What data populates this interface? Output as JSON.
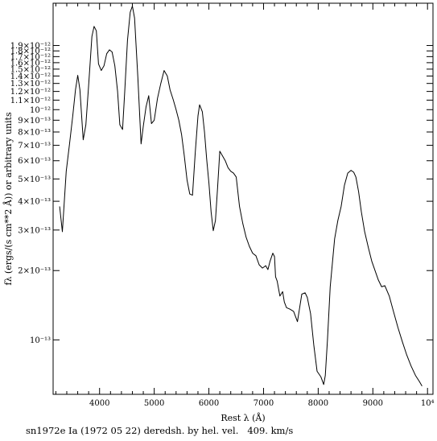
{
  "chart_data": {
    "type": "line",
    "title": "",
    "xlabel": "Rest λ (Å)",
    "ylabel": "fλ (ergs/(s cm**2 Å)) or arbitrary units",
    "caption": "sn1972e Ia (1972 05 22) deredsh. by hel. vel.   409. km/s",
    "xlim": [
      3150,
      10100
    ],
    "xscale": "linear",
    "yscale": "log",
    "ylim": [
      5.8e-14,
      2.9e-12
    ],
    "x_ticks": [
      {
        "value": 4000,
        "label": "4000"
      },
      {
        "value": 5000,
        "label": "5000"
      },
      {
        "value": 6000,
        "label": "6000"
      },
      {
        "value": 7000,
        "label": "7000"
      },
      {
        "value": 8000,
        "label": "8000"
      },
      {
        "value": 9000,
        "label": "9000"
      },
      {
        "value": 10000,
        "label": "10⁴"
      }
    ],
    "y_ticks": [
      {
        "value": 1e-13,
        "label": "10⁻¹³"
      },
      {
        "value": 2e-13,
        "label": "2×10⁻¹³"
      },
      {
        "value": 3e-13,
        "label": "3×10⁻¹³"
      },
      {
        "value": 4e-13,
        "label": "4×10⁻¹³"
      },
      {
        "value": 5e-13,
        "label": "5×10⁻¹³"
      },
      {
        "value": 6e-13,
        "label": "6×10⁻¹³"
      },
      {
        "value": 7e-13,
        "label": "7×10⁻¹³"
      },
      {
        "value": 8e-13,
        "label": "8×10⁻¹³"
      },
      {
        "value": 9e-13,
        "label": "9×10⁻¹³"
      },
      {
        "value": 1e-12,
        "label": "10⁻¹²"
      },
      {
        "value": 1.1e-12,
        "label": "1.1×10⁻¹²"
      },
      {
        "value": 1.2e-12,
        "label": "1.2×10⁻¹²"
      },
      {
        "value": 1.3e-12,
        "label": "1.3×10⁻¹²"
      },
      {
        "value": 1.4e-12,
        "label": "1.4×10⁻¹²"
      },
      {
        "value": 1.5e-12,
        "label": "1.5×10⁻¹²"
      },
      {
        "value": 1.6e-12,
        "label": "1.6×10⁻¹²"
      },
      {
        "value": 1.7e-12,
        "label": "1.7×10⁻¹²"
      },
      {
        "value": 1.8e-12,
        "label": "1.8×10⁻¹²"
      },
      {
        "value": 1.9e-12,
        "label": "1.9×10⁻¹²"
      }
    ],
    "series": [
      {
        "x": [
          3270,
          3320,
          3390,
          3450,
          3510,
          3560,
          3600,
          3640,
          3700,
          3750,
          3800,
          3860,
          3900,
          3940,
          3980,
          4030,
          4080,
          4130,
          4180,
          4230,
          4280,
          4330,
          4370,
          4420,
          4460,
          4510,
          4560,
          4600,
          4640,
          4700,
          4760,
          4800,
          4850,
          4900,
          4950,
          5000,
          5060,
          5120,
          5180,
          5240,
          5290,
          5350,
          5400,
          5450,
          5500,
          5550,
          5600,
          5650,
          5700,
          5750,
          5800,
          5830,
          5880,
          5920,
          5960,
          6000,
          6040,
          6080,
          6120,
          6160,
          6200,
          6250,
          6300,
          6350,
          6400,
          6450,
          6500,
          6560,
          6620,
          6680,
          6740,
          6800,
          6860,
          6920,
          6980,
          7040,
          7080,
          7120,
          7170,
          7200,
          7220,
          7250,
          7300,
          7350,
          7380,
          7420,
          7480,
          7550,
          7620,
          7700,
          7760,
          7800,
          7860,
          7920,
          7980,
          8050,
          8100,
          8130,
          8170,
          8220,
          8300,
          8360,
          8420,
          8480,
          8540,
          8600,
          8650,
          8690,
          8740,
          8790,
          8850,
          8920,
          8980,
          9040,
          9100,
          9160,
          9220,
          9300,
          9380,
          9460,
          9540,
          9620,
          9700,
          9780,
          9850,
          9900
        ],
        "values": [
          3.8e-13,
          2.95e-13,
          5.4e-13,
          7.1e-13,
          9.4e-13,
          1.22e-12,
          1.41e-12,
          1.22e-12,
          7.4e-13,
          8.6e-13,
          1.27e-12,
          2.08e-12,
          2.3e-12,
          2.2e-12,
          1.58e-12,
          1.48e-12,
          1.55e-12,
          1.75e-12,
          1.82e-12,
          1.78e-12,
          1.55e-12,
          1.2e-12,
          8.6e-13,
          8.2e-13,
          1.2e-12,
          2e-12,
          2.65e-12,
          2.82e-12,
          2.5e-12,
          1.38e-12,
          7.1e-13,
          8.5e-13,
          1.03e-12,
          1.15e-12,
          8.7e-13,
          9e-13,
          1.12e-12,
          1.3e-12,
          1.48e-12,
          1.4e-12,
          1.22e-12,
          1.1e-12,
          1e-12,
          9e-13,
          7.8e-13,
          6.3e-13,
          4.95e-13,
          4.3e-13,
          4.25e-13,
          6.5e-13,
          9.4e-13,
          1.05e-12,
          9.8e-13,
          8e-13,
          6.1e-13,
          4.8e-13,
          3.6e-13,
          2.98e-13,
          3.3e-13,
          4.6e-13,
          6.6e-13,
          6.3e-13,
          6e-13,
          5.6e-13,
          5.4e-13,
          5.3e-13,
          5.1e-13,
          3.8e-13,
          3.2e-13,
          2.8e-13,
          2.55e-13,
          2.38e-13,
          2.32e-13,
          2.12e-13,
          2.05e-13,
          2.1e-13,
          2.02e-13,
          2.2e-13,
          2.38e-13,
          2.3e-13,
          1.88e-13,
          1.8e-13,
          1.55e-13,
          1.62e-13,
          1.46e-13,
          1.38e-13,
          1.36e-13,
          1.33e-13,
          1.2e-13,
          1.58e-13,
          1.6e-13,
          1.53e-13,
          1.3e-13,
          9.5e-14,
          7.3e-14,
          6.9e-14,
          6.4e-14,
          7e-14,
          1e-13,
          1.7e-13,
          2.75e-13,
          3.3e-13,
          3.8e-13,
          4.7e-13,
          5.3e-13,
          5.45e-13,
          5.35e-13,
          5.1e-13,
          4.4e-13,
          3.6e-13,
          2.95e-13,
          2.5e-13,
          2.2e-13,
          2e-13,
          1.82e-13,
          1.7e-13,
          1.72e-13,
          1.55e-13,
          1.32e-13,
          1.13e-13,
          9.8e-14,
          8.6e-14,
          7.7e-14,
          7e-14,
          6.6e-14,
          6.3e-14
        ]
      }
    ]
  }
}
